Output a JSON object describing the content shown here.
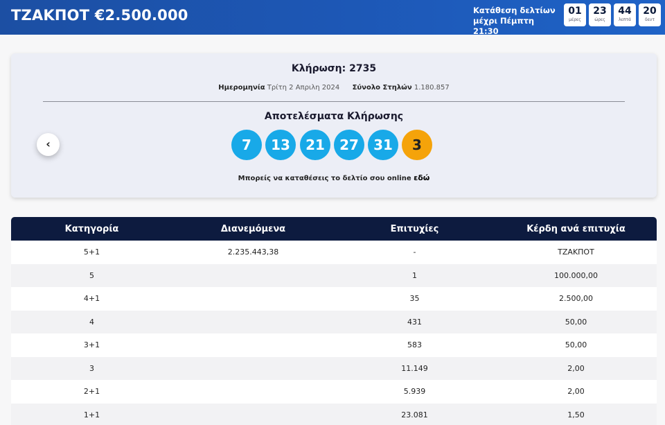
{
  "header": {
    "jackpot_title": "ΤΖΑΚΠΟΤ €2.500.000",
    "deadline_line1": "Κατάθεση δελτίων",
    "deadline_line2": "μέχρι Πέμπτη 21:30",
    "countdown": [
      {
        "value": "01",
        "unit": "μέρες"
      },
      {
        "value": "23",
        "unit": "ώρες"
      },
      {
        "value": "44",
        "unit": "λεπτά"
      },
      {
        "value": "20",
        "unit": "δευτ"
      }
    ]
  },
  "draw": {
    "title": "Κλήρωση: 2735",
    "date_label": "Ημερομηνία",
    "date_value": "Τρίτη 2 Απριλη 2024",
    "columns_label": "Σύνολο Στηλών",
    "columns_value": "1.180.857",
    "results_heading": "Αποτελέσματα Κλήρωσης",
    "prev_icon": "chevron-left",
    "main_numbers": [
      "7",
      "13",
      "21",
      "27",
      "31"
    ],
    "bonus_number": "3",
    "online_note_text": "Μπορείς να καταθέσεις το δελτίο σου online",
    "online_note_link": "εδώ",
    "colors": {
      "main_ball": "#18a9e8",
      "bonus_ball": "#f5a30a",
      "header": "#1d57b5",
      "table_header": "#0d1b3f"
    }
  },
  "table": {
    "headers": [
      "Κατηγορία",
      "Διανεμόμενα",
      "Επιτυχίες",
      "Κέρδη ανά επιτυχία"
    ],
    "rows": [
      [
        "5+1",
        "2.235.443,38",
        "-",
        "ΤΖΑΚΠΟΤ"
      ],
      [
        "5",
        "",
        "1",
        "100.000,00"
      ],
      [
        "4+1",
        "",
        "35",
        "2.500,00"
      ],
      [
        "4",
        "",
        "431",
        "50,00"
      ],
      [
        "3+1",
        "",
        "583",
        "50,00"
      ],
      [
        "3",
        "",
        "11.149",
        "2,00"
      ],
      [
        "2+1",
        "",
        "5.939",
        "2,00"
      ],
      [
        "1+1",
        "",
        "23.081",
        "1,50"
      ]
    ]
  }
}
